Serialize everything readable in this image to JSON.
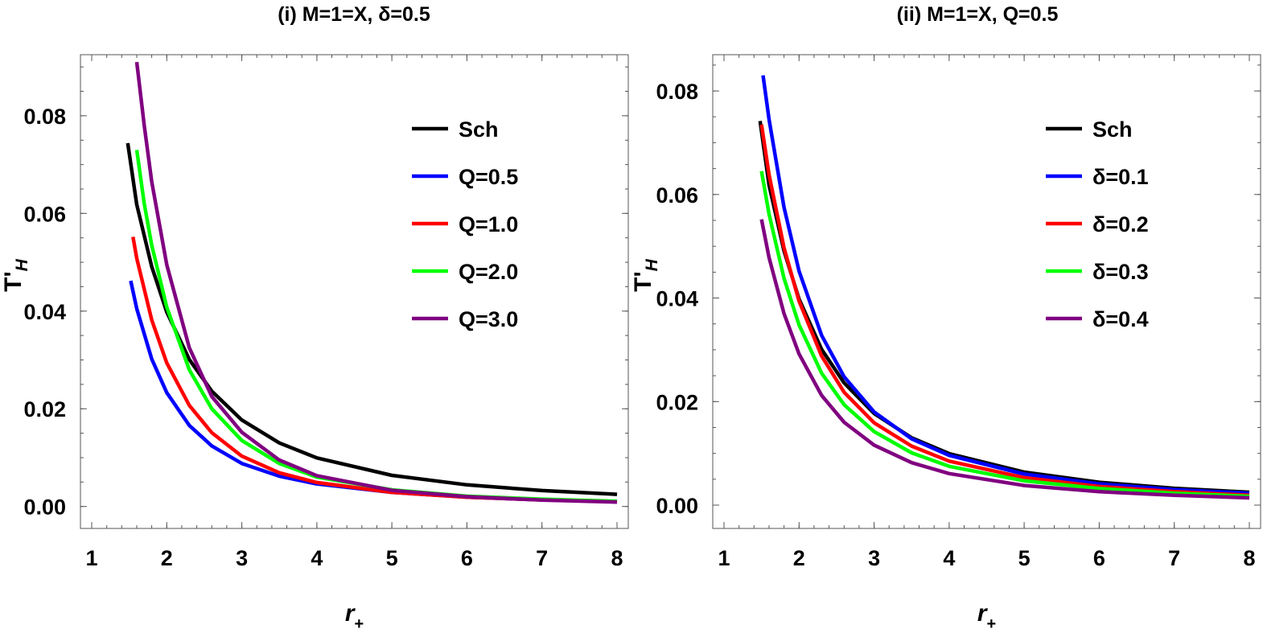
{
  "chart_data": [
    {
      "type": "line",
      "title": "(i) M=1=X, δ=0.5",
      "xlabel": "r+",
      "ylabel": "T'H",
      "xlim": [
        0.85,
        8.15
      ],
      "ylim": [
        -0.0045,
        0.0925
      ],
      "xticks": [
        1,
        2,
        3,
        4,
        5,
        6,
        7,
        8
      ],
      "yticks": [
        0.0,
        0.02,
        0.04,
        0.06,
        0.08
      ],
      "ytick_labels": [
        "0.00",
        "0.02",
        "0.04",
        "0.06",
        "0.08"
      ],
      "grid": false,
      "legend_position": "upper-right",
      "series": [
        {
          "name": "Sch",
          "color": "#000000",
          "x": [
            1.48,
            1.6,
            1.8,
            2.0,
            2.3,
            2.6,
            3.0,
            3.5,
            4.0,
            5.0,
            6.0,
            7.0,
            8.0
          ],
          "y": [
            0.0744,
            0.0618,
            0.0491,
            0.0398,
            0.0301,
            0.0236,
            0.0177,
            0.013,
            0.00995,
            0.00637,
            0.00442,
            0.00325,
            0.00249
          ]
        },
        {
          "name": "Q=0.5",
          "color": "#0000ff",
          "x": [
            1.52,
            1.6,
            1.8,
            2.0,
            2.3,
            2.6,
            3.0,
            3.5,
            4.0,
            5.0,
            6.0,
            7.0,
            8.0
          ],
          "y": [
            0.0462,
            0.0405,
            0.0302,
            0.0233,
            0.0166,
            0.0124,
            0.0088,
            0.0062,
            0.0046,
            0.0029,
            0.0019,
            0.00135,
            0.001
          ]
        },
        {
          "name": "Q=1.0",
          "color": "#ff0000",
          "x": [
            1.55,
            1.6,
            1.8,
            2.0,
            2.3,
            2.6,
            3.0,
            3.5,
            4.0,
            5.0,
            6.0,
            7.0,
            8.0
          ],
          "y": [
            0.0552,
            0.0508,
            0.0382,
            0.0294,
            0.0207,
            0.0151,
            0.0103,
            0.0069,
            0.0049,
            0.0029,
            0.0019,
            0.00135,
            0.001
          ]
        },
        {
          "name": "Q=2.0",
          "color": "#00ff00",
          "x": [
            1.6,
            1.7,
            1.8,
            2.0,
            2.3,
            2.6,
            3.0,
            3.5,
            4.0,
            5.0,
            6.0,
            7.0,
            8.0
          ],
          "y": [
            0.073,
            0.062,
            0.0535,
            0.0408,
            0.028,
            0.02,
            0.0135,
            0.0088,
            0.006,
            0.0034,
            0.0021,
            0.0015,
            0.00105
          ]
        },
        {
          "name": "Q=3.0",
          "color": "#800080",
          "x": [
            1.6,
            1.7,
            1.8,
            2.0,
            2.3,
            2.6,
            3.0,
            3.5,
            4.0,
            5.0,
            6.0,
            7.0,
            8.0
          ],
          "y": [
            0.091,
            0.078,
            0.0665,
            0.0495,
            0.0325,
            0.0225,
            0.0152,
            0.0095,
            0.0063,
            0.0033,
            0.002,
            0.0013,
            0.0009
          ]
        }
      ]
    },
    {
      "type": "line",
      "title": "(ii) M=1=X, Q=0.5",
      "xlabel": "r+",
      "ylabel": "T'H",
      "xlim": [
        0.85,
        8.15
      ],
      "ylim": [
        -0.0045,
        0.087
      ],
      "xticks": [
        1,
        2,
        3,
        4,
        5,
        6,
        7,
        8
      ],
      "yticks": [
        0.0,
        0.02,
        0.04,
        0.06,
        0.08
      ],
      "ytick_labels": [
        "0.00",
        "0.02",
        "0.04",
        "0.06",
        "0.08"
      ],
      "grid": false,
      "legend_position": "upper-right",
      "series": [
        {
          "name": "Sch",
          "color": "#000000",
          "x": [
            1.48,
            1.6,
            1.8,
            2.0,
            2.3,
            2.6,
            3.0,
            3.5,
            4.0,
            5.0,
            6.0,
            7.0,
            8.0
          ],
          "y": [
            0.0742,
            0.0618,
            0.0491,
            0.0398,
            0.0301,
            0.0236,
            0.0177,
            0.013,
            0.00995,
            0.00637,
            0.00442,
            0.00325,
            0.00249
          ]
        },
        {
          "name": "δ=0.1",
          "color": "#0000ff",
          "x": [
            1.52,
            1.6,
            1.8,
            2.0,
            2.3,
            2.6,
            3.0,
            3.5,
            4.0,
            5.0,
            6.0,
            7.0,
            8.0
          ],
          "y": [
            0.083,
            0.0745,
            0.0575,
            0.0452,
            0.0328,
            0.0248,
            0.018,
            0.0128,
            0.0096,
            0.006,
            0.0041,
            0.003,
            0.0023
          ]
        },
        {
          "name": "δ=0.2",
          "color": "#ff0000",
          "x": [
            1.5,
            1.6,
            1.8,
            2.0,
            2.3,
            2.6,
            3.0,
            3.5,
            4.0,
            5.0,
            6.0,
            7.0,
            8.0
          ],
          "y": [
            0.0735,
            0.0638,
            0.0497,
            0.0394,
            0.0288,
            0.0218,
            0.0159,
            0.0114,
            0.0085,
            0.0053,
            0.0036,
            0.0026,
            0.0019
          ]
        },
        {
          "name": "δ=0.3",
          "color": "#00ff00",
          "x": [
            1.5,
            1.6,
            1.8,
            2.0,
            2.3,
            2.6,
            3.0,
            3.5,
            4.0,
            5.0,
            6.0,
            7.0,
            8.0
          ],
          "y": [
            0.0645,
            0.0562,
            0.0438,
            0.0348,
            0.0255,
            0.0194,
            0.0142,
            0.0101,
            0.0075,
            0.0047,
            0.0032,
            0.0023,
            0.0017
          ]
        },
        {
          "name": "δ=0.4",
          "color": "#800080",
          "x": [
            1.5,
            1.6,
            1.8,
            2.0,
            2.3,
            2.6,
            3.0,
            3.5,
            4.0,
            5.0,
            6.0,
            7.0,
            8.0
          ],
          "y": [
            0.0552,
            0.0478,
            0.037,
            0.0292,
            0.0212,
            0.016,
            0.0116,
            0.0082,
            0.0061,
            0.0038,
            0.0026,
            0.0019,
            0.0014
          ]
        }
      ]
    }
  ]
}
